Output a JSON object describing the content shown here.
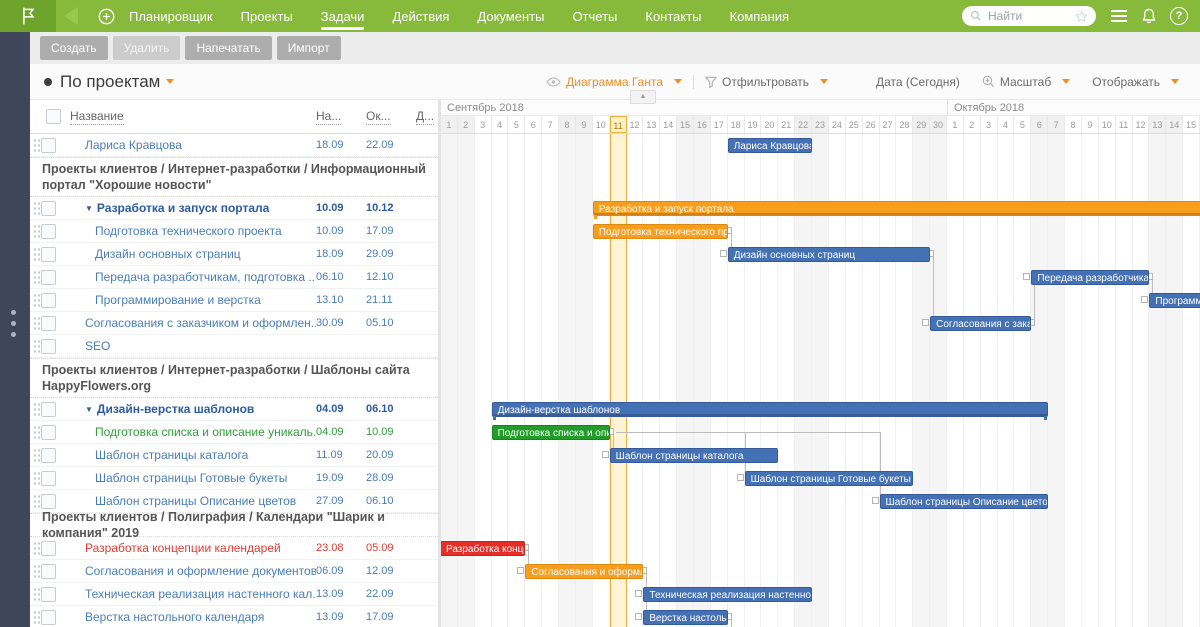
{
  "header": {
    "menu": [
      "Планировщик",
      "Проекты",
      "Задачи",
      "Действия",
      "Документы",
      "Отчеты",
      "Контакты",
      "Компания"
    ],
    "active_menu": "Задачи",
    "search_placeholder": "Найти",
    "help_glyph": "?"
  },
  "toolbar": {
    "buttons": [
      {
        "label": "Создать",
        "disabled": false
      },
      {
        "label": "Удалить",
        "disabled": true
      },
      {
        "label": "Напечатать",
        "disabled": false
      },
      {
        "label": "Импорт",
        "disabled": false
      }
    ]
  },
  "view": {
    "title": "По проектам",
    "controls": {
      "gantt_label": "Диаграмма Ганта",
      "filter_label": "Отфильтровать",
      "date_label": "Дата (Сегодня)",
      "scale_label": "Масштаб",
      "display_label": "Отображать"
    },
    "scroll_up_glyph": "▲"
  },
  "glyphs": {
    "caret_down": "▼"
  },
  "colors": {
    "header_green": "#87b93a",
    "logo_green": "#6ea32c",
    "accent_orange": "#e8902c",
    "bar_blue": "#4470b4",
    "bar_orange": "#f99d1c",
    "bar_green": "#219c28",
    "bar_red": "#e62e29",
    "today_fill": "#fcf4d5",
    "today_border": "#efae3e"
  },
  "table": {
    "columns": [
      "Название",
      "На...",
      "Ок...",
      "Д..."
    ]
  },
  "gantt": {
    "total_days": 45,
    "today_index": 10,
    "weekend_indices": [
      0,
      1,
      7,
      8,
      14,
      15,
      21,
      22,
      28,
      29,
      35,
      36,
      42,
      43
    ],
    "months": [
      {
        "label": "Сентябрь 2018",
        "start": 0,
        "days": 30
      },
      {
        "label": "Октябрь 2018",
        "start": 30,
        "days": 15
      }
    ]
  },
  "rows": [
    {
      "id": "larisa",
      "type": "task",
      "name": "Лариса Кравцова",
      "start": "18.09",
      "end": "22.09",
      "indent": 0,
      "status": "blue",
      "bar": {
        "from": 17,
        "to": 22,
        "color": "blue",
        "label": "Лариса Кравцова"
      }
    },
    {
      "type": "group",
      "lines": 2,
      "text": "Проекты клиентов / Интернет-разработки / Информационный портал \"Хорошие новости\""
    },
    {
      "id": "portal",
      "type": "task",
      "name": "Разработка и запуск портала",
      "start": "10.09",
      "end": "10.12",
      "indent": 0,
      "status": "bold",
      "summary": true,
      "bar": {
        "from": 9,
        "to": 45,
        "color": "orange",
        "label": "Разработка и запуск портала",
        "summary": true,
        "clipRight": true
      }
    },
    {
      "id": "tech",
      "type": "task",
      "name": "Подготовка технического проекта",
      "start": "10.09",
      "end": "17.09",
      "indent": 1,
      "status": "blue",
      "bar": {
        "from": 9,
        "to": 17,
        "color": "orange",
        "label": "Подготовка технического проекта"
      }
    },
    {
      "id": "design",
      "type": "task",
      "name": "Дизайн основных страниц",
      "start": "18.09",
      "end": "29.09",
      "indent": 1,
      "status": "blue",
      "bar": {
        "from": 17,
        "to": 29,
        "color": "blue",
        "label": "Дизайн основных страниц"
      }
    },
    {
      "id": "handoff",
      "type": "task",
      "name": "Передача разработчикам, подготовка ...",
      "start": "06.10",
      "end": "12.10",
      "indent": 1,
      "status": "blue",
      "bar": {
        "from": 35,
        "to": 42,
        "color": "blue",
        "label": "Передача разработчикам, по..."
      }
    },
    {
      "id": "prog",
      "type": "task",
      "name": "Программирование и верстка",
      "start": "13.10",
      "end": "21.11",
      "indent": 1,
      "status": "blue",
      "bar": {
        "from": 42,
        "to": 45,
        "color": "blue",
        "label": "Программир...",
        "clipRight": true
      }
    },
    {
      "id": "approve1",
      "type": "task",
      "name": "Согласования с заказчиком и оформлен...",
      "start": "30.09",
      "end": "05.10",
      "indent": 0,
      "status": "blue",
      "bar": {
        "from": 29,
        "to": 35,
        "color": "blue",
        "label": "Согласования с заказчи..."
      }
    },
    {
      "id": "seo",
      "type": "task",
      "name": "SEO",
      "start": "",
      "end": "",
      "indent": 0,
      "status": "blue"
    },
    {
      "type": "group",
      "lines": 2,
      "text": "Проекты клиентов / Интернет-разработки / Шаблоны сайта HappyFlowers.org"
    },
    {
      "id": "templates",
      "type": "task",
      "name": "Дизайн-верстка шаблонов",
      "start": "04.09",
      "end": "06.10",
      "indent": 0,
      "status": "bold",
      "summary": true,
      "bar": {
        "from": 3,
        "to": 36,
        "color": "blue",
        "label": "Дизайн-верстка шаблонов",
        "summary": true
      }
    },
    {
      "id": "list",
      "type": "task",
      "name": "Подготовка списка и описание уникаль...",
      "start": "04.09",
      "end": "10.09",
      "indent": 1,
      "status": "green",
      "bar": {
        "from": 3,
        "to": 10,
        "color": "green",
        "label": "Подготовка списка и описан..."
      }
    },
    {
      "id": "catalog",
      "type": "task",
      "name": "Шаблон страницы каталога",
      "start": "11.09",
      "end": "20.09",
      "indent": 1,
      "status": "blue",
      "bar": {
        "from": 10,
        "to": 20,
        "color": "blue",
        "label": "Шаблон страницы каталога"
      }
    },
    {
      "id": "bouquets",
      "type": "task",
      "name": "Шаблон страницы Готовые букеты",
      "start": "19.09",
      "end": "28.09",
      "indent": 1,
      "status": "blue",
      "bar": {
        "from": 18,
        "to": 28,
        "color": "blue",
        "label": "Шаблон страницы Готовые букеты"
      }
    },
    {
      "id": "flowers",
      "type": "task",
      "name": "Шаблон страницы Описание цветов",
      "start": "27.09",
      "end": "06.10",
      "indent": 1,
      "status": "blue",
      "bar": {
        "from": 26,
        "to": 36,
        "color": "blue",
        "label": "Шаблон страницы Описание цветов"
      }
    },
    {
      "type": "group",
      "lines": 1,
      "text": "Проекты клиентов / Полиграфия / Календари \"Шарик и компания\" 2019"
    },
    {
      "id": "concept",
      "type": "task",
      "name": "Разработка концепции календарей",
      "start": "23.08",
      "end": "05.09",
      "indent": 0,
      "status": "red",
      "bar": {
        "from": 0,
        "to": 5,
        "color": "red",
        "label": "Разработка концеп...",
        "clipLeft": true
      }
    },
    {
      "id": "docs",
      "type": "task",
      "name": "Согласования и оформление документов",
      "start": "06.09",
      "end": "12.09",
      "indent": 0,
      "status": "blue",
      "bar": {
        "from": 5,
        "to": 12,
        "color": "orange",
        "label": "Согласования и оформление ..."
      }
    },
    {
      "id": "wallcal",
      "type": "task",
      "name": "Техническая реализация настенного кал...",
      "start": "13.09",
      "end": "22.09",
      "indent": 0,
      "status": "blue",
      "bar": {
        "from": 12,
        "to": 22,
        "color": "blue",
        "label": "Техническая реализация настенного кален..."
      }
    },
    {
      "id": "deskcal",
      "type": "task",
      "name": "Верстка настольного календаря",
      "start": "13.09",
      "end": "17.09",
      "indent": 0,
      "status": "blue",
      "bar": {
        "from": 12,
        "to": 17,
        "color": "blue",
        "label": "Верстка настольно..."
      }
    }
  ],
  "links": [
    {
      "from": "tech",
      "to": "design"
    },
    {
      "from": "design",
      "to": "approve1"
    },
    {
      "from": "approve1",
      "to": "handoff"
    },
    {
      "from": "handoff",
      "to": "prog"
    },
    {
      "from": "list",
      "to": "catalog"
    },
    {
      "from": "list",
      "to": "bouquets"
    },
    {
      "from": "list",
      "to": "flowers"
    },
    {
      "from": "concept",
      "to": "docs"
    },
    {
      "from": "docs",
      "to": "wallcal"
    },
    {
      "from": "docs",
      "to": "deskcal"
    },
    {
      "from": "deskcal",
      "stub": true
    }
  ]
}
